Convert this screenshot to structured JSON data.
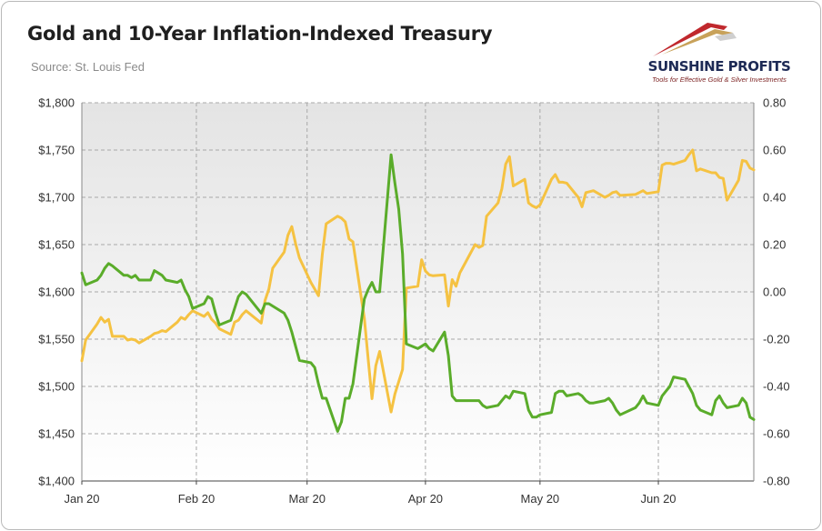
{
  "title": "Gold and 10-Year Inflation-Indexed Treasury",
  "source": "Source: St. Louis Fed",
  "logo": {
    "name": "SUNSHINE PROFITS",
    "tagline": "Tools for Effective Gold & Silver Investments"
  },
  "colors": {
    "gold": "#f5c242",
    "tips": "#5aac2a",
    "plot_bg_top": "#e4e4e4",
    "plot_bg_bottom": "#ffffff",
    "grid": "#a8a8a8",
    "logo_red": "#c0282d",
    "logo_gold": "#c8a25a"
  },
  "chart_data": {
    "type": "line",
    "x_axis": {
      "start": "2020-01-02",
      "end": "2020-06-26",
      "tick_dates": [
        "2020-01-02",
        "2020-02-01",
        "2020-03-01",
        "2020-04-01",
        "2020-05-01",
        "2020-06-01"
      ],
      "tick_labels": [
        "Jan 20",
        "Feb 20",
        "Mar 20",
        "Apr 20",
        "May 20",
        "Jun 20"
      ]
    },
    "y_left": {
      "min": 1400,
      "max": 1800,
      "ticks": [
        1400,
        1450,
        1500,
        1550,
        1600,
        1650,
        1700,
        1750,
        1800
      ],
      "tick_labels": [
        "$1,400",
        "$1,450",
        "$1,500",
        "$1,550",
        "$1,600",
        "$1,650",
        "$1,700",
        "$1,750",
        "$1,800"
      ]
    },
    "y_right": {
      "min": -0.8,
      "max": 0.8,
      "ticks": [
        -0.8,
        -0.6,
        -0.4,
        -0.2,
        0,
        0.2,
        0.4,
        0.6,
        0.8
      ],
      "tick_labels": [
        "-0.80",
        "-0.60",
        "-0.40",
        "-0.20",
        "0.00",
        "0.20",
        "0.40",
        "0.60",
        "0.80"
      ]
    },
    "grid": true,
    "legend": "none",
    "series": [
      {
        "axis": "left",
        "color": "#f5c242",
        "points": [
          [
            "2020-01-02",
            1527
          ],
          [
            "2020-01-03",
            1549
          ],
          [
            "2020-01-06",
            1566
          ],
          [
            "2020-01-07",
            1573
          ],
          [
            "2020-01-08",
            1568
          ],
          [
            "2020-01-09",
            1571
          ],
          [
            "2020-01-10",
            1553
          ],
          [
            "2020-01-13",
            1553
          ],
          [
            "2020-01-14",
            1549
          ],
          [
            "2020-01-15",
            1550
          ],
          [
            "2020-01-16",
            1549
          ],
          [
            "2020-01-17",
            1546
          ],
          [
            "2020-01-20",
            1553
          ],
          [
            "2020-01-21",
            1556
          ],
          [
            "2020-01-22",
            1557
          ],
          [
            "2020-01-23",
            1559
          ],
          [
            "2020-01-24",
            1558
          ],
          [
            "2020-01-27",
            1568
          ],
          [
            "2020-01-28",
            1573
          ],
          [
            "2020-01-29",
            1571
          ],
          [
            "2020-01-30",
            1576
          ],
          [
            "2020-01-31",
            1580
          ],
          [
            "2020-02-03",
            1574
          ],
          [
            "2020-02-04",
            1578
          ],
          [
            "2020-02-05",
            1571
          ],
          [
            "2020-02-06",
            1567
          ],
          [
            "2020-02-07",
            1561
          ],
          [
            "2020-02-10",
            1555
          ],
          [
            "2020-02-11",
            1568
          ],
          [
            "2020-02-12",
            1570
          ],
          [
            "2020-02-13",
            1576
          ],
          [
            "2020-02-14",
            1580
          ],
          [
            "2020-02-18",
            1567
          ],
          [
            "2020-02-19",
            1591
          ],
          [
            "2020-02-20",
            1603
          ],
          [
            "2020-02-21",
            1625
          ],
          [
            "2020-02-24",
            1642
          ],
          [
            "2020-02-25",
            1660
          ],
          [
            "2020-02-26",
            1669
          ],
          [
            "2020-02-27",
            1651
          ],
          [
            "2020-02-28",
            1636
          ],
          [
            "2020-03-02",
            1610
          ],
          [
            "2020-03-03",
            1603
          ],
          [
            "2020-03-04",
            1596
          ],
          [
            "2020-03-05",
            1640
          ],
          [
            "2020-03-06",
            1672
          ],
          [
            "2020-03-09",
            1680
          ],
          [
            "2020-03-10",
            1678
          ],
          [
            "2020-03-11",
            1674
          ],
          [
            "2020-03-12",
            1656
          ],
          [
            "2020-03-13",
            1653
          ],
          [
            "2020-03-16",
            1572
          ],
          [
            "2020-03-17",
            1529
          ],
          [
            "2020-03-18",
            1487
          ],
          [
            "2020-03-19",
            1522
          ],
          [
            "2020-03-20",
            1537
          ],
          [
            "2020-03-23",
            1473
          ],
          [
            "2020-03-24",
            1492
          ],
          [
            "2020-03-25",
            1505
          ],
          [
            "2020-03-26",
            1518
          ],
          [
            "2020-03-27",
            1604
          ],
          [
            "2020-03-30",
            1606
          ],
          [
            "2020-03-31",
            1634
          ],
          [
            "2020-04-01",
            1622
          ],
          [
            "2020-04-02",
            1618
          ],
          [
            "2020-04-03",
            1617
          ],
          [
            "2020-04-06",
            1618
          ],
          [
            "2020-04-07",
            1585
          ],
          [
            "2020-04-08",
            1613
          ],
          [
            "2020-04-09",
            1606
          ],
          [
            "2020-04-10",
            1620
          ],
          [
            "2020-04-14",
            1650
          ],
          [
            "2020-04-15",
            1647
          ],
          [
            "2020-04-16",
            1649
          ],
          [
            "2020-04-17",
            1680
          ],
          [
            "2020-04-20",
            1694
          ],
          [
            "2020-04-21",
            1709
          ],
          [
            "2020-04-22",
            1735
          ],
          [
            "2020-04-23",
            1743
          ],
          [
            "2020-04-24",
            1712
          ],
          [
            "2020-04-27",
            1719
          ],
          [
            "2020-04-28",
            1694
          ],
          [
            "2020-04-29",
            1691
          ],
          [
            "2020-04-30",
            1689
          ],
          [
            "2020-05-01",
            1692
          ],
          [
            "2020-05-04",
            1719
          ],
          [
            "2020-05-05",
            1724
          ],
          [
            "2020-05-06",
            1716
          ],
          [
            "2020-05-07",
            1716
          ],
          [
            "2020-05-08",
            1715
          ],
          [
            "2020-05-11",
            1700
          ],
          [
            "2020-05-12",
            1690
          ],
          [
            "2020-05-13",
            1705
          ],
          [
            "2020-05-14",
            1706
          ],
          [
            "2020-05-15",
            1707
          ],
          [
            "2020-05-18",
            1700
          ],
          [
            "2020-05-19",
            1702
          ],
          [
            "2020-05-20",
            1705
          ],
          [
            "2020-05-21",
            1706
          ],
          [
            "2020-05-22",
            1702
          ],
          [
            "2020-05-26",
            1703
          ],
          [
            "2020-05-27",
            1705
          ],
          [
            "2020-05-28",
            1707
          ],
          [
            "2020-05-29",
            1704
          ],
          [
            "2020-06-01",
            1706
          ],
          [
            "2020-06-02",
            1734
          ],
          [
            "2020-06-03",
            1736
          ],
          [
            "2020-06-04",
            1736
          ],
          [
            "2020-06-05",
            1735
          ],
          [
            "2020-06-08",
            1739
          ],
          [
            "2020-06-09",
            1745
          ],
          [
            "2020-06-10",
            1750
          ],
          [
            "2020-06-11",
            1728
          ],
          [
            "2020-06-12",
            1730
          ],
          [
            "2020-06-15",
            1726
          ],
          [
            "2020-06-16",
            1726
          ],
          [
            "2020-06-17",
            1721
          ],
          [
            "2020-06-18",
            1720
          ],
          [
            "2020-06-19",
            1697
          ],
          [
            "2020-06-22",
            1718
          ],
          [
            "2020-06-23",
            1739
          ],
          [
            "2020-06-24",
            1738
          ],
          [
            "2020-06-25",
            1731
          ],
          [
            "2020-06-26",
            1729
          ]
        ]
      },
      {
        "axis": "right",
        "color": "#5aac2a",
        "points": [
          [
            "2020-01-02",
            0.08
          ],
          [
            "2020-01-03",
            0.03
          ],
          [
            "2020-01-06",
            0.05
          ],
          [
            "2020-01-07",
            0.07
          ],
          [
            "2020-01-08",
            0.1
          ],
          [
            "2020-01-09",
            0.12
          ],
          [
            "2020-01-10",
            0.11
          ],
          [
            "2020-01-13",
            0.07
          ],
          [
            "2020-01-14",
            0.07
          ],
          [
            "2020-01-15",
            0.06
          ],
          [
            "2020-01-16",
            0.07
          ],
          [
            "2020-01-17",
            0.05
          ],
          [
            "2020-01-20",
            0.05
          ],
          [
            "2020-01-21",
            0.09
          ],
          [
            "2020-01-22",
            0.08
          ],
          [
            "2020-01-23",
            0.07
          ],
          [
            "2020-01-24",
            0.05
          ],
          [
            "2020-01-27",
            0.04
          ],
          [
            "2020-01-28",
            0.05
          ],
          [
            "2020-01-29",
            0.01
          ],
          [
            "2020-01-30",
            -0.02
          ],
          [
            "2020-01-31",
            -0.07
          ],
          [
            "2020-02-03",
            -0.05
          ],
          [
            "2020-02-04",
            -0.02
          ],
          [
            "2020-02-05",
            -0.03
          ],
          [
            "2020-02-06",
            -0.09
          ],
          [
            "2020-02-07",
            -0.14
          ],
          [
            "2020-02-10",
            -0.12
          ],
          [
            "2020-02-11",
            -0.07
          ],
          [
            "2020-02-12",
            -0.02
          ],
          [
            "2020-02-13",
            0.0
          ],
          [
            "2020-02-14",
            -0.01
          ],
          [
            "2020-02-18",
            -0.09
          ],
          [
            "2020-02-19",
            -0.05
          ],
          [
            "2020-02-20",
            -0.05
          ],
          [
            "2020-02-21",
            -0.06
          ],
          [
            "2020-02-24",
            -0.09
          ],
          [
            "2020-02-25",
            -0.12
          ],
          [
            "2020-02-26",
            -0.17
          ],
          [
            "2020-02-27",
            -0.23
          ],
          [
            "2020-02-28",
            -0.29
          ],
          [
            "2020-03-02",
            -0.3
          ],
          [
            "2020-03-03",
            -0.32
          ],
          [
            "2020-03-04",
            -0.39
          ],
          [
            "2020-03-05",
            -0.45
          ],
          [
            "2020-03-06",
            -0.45
          ],
          [
            "2020-03-09",
            -0.59
          ],
          [
            "2020-03-10",
            -0.55
          ],
          [
            "2020-03-11",
            -0.45
          ],
          [
            "2020-03-12",
            -0.45
          ],
          [
            "2020-03-13",
            -0.39
          ],
          [
            "2020-03-16",
            -0.03
          ],
          [
            "2020-03-17",
            0.01
          ],
          [
            "2020-03-18",
            0.04
          ],
          [
            "2020-03-19",
            0.0
          ],
          [
            "2020-03-20",
            0.0
          ],
          [
            "2020-03-23",
            0.58
          ],
          [
            "2020-03-24",
            0.46
          ],
          [
            "2020-03-25",
            0.35
          ],
          [
            "2020-03-26",
            0.16
          ],
          [
            "2020-03-27",
            -0.22
          ],
          [
            "2020-03-30",
            -0.24
          ],
          [
            "2020-03-31",
            -0.23
          ],
          [
            "2020-04-01",
            -0.22
          ],
          [
            "2020-04-02",
            -0.24
          ],
          [
            "2020-04-03",
            -0.25
          ],
          [
            "2020-04-06",
            -0.17
          ],
          [
            "2020-04-07",
            -0.27
          ],
          [
            "2020-04-08",
            -0.44
          ],
          [
            "2020-04-09",
            -0.46
          ],
          [
            "2020-04-10",
            -0.46
          ],
          [
            "2020-04-14",
            -0.46
          ],
          [
            "2020-04-15",
            -0.46
          ],
          [
            "2020-04-16",
            -0.48
          ],
          [
            "2020-04-17",
            -0.49
          ],
          [
            "2020-04-20",
            -0.48
          ],
          [
            "2020-04-21",
            -0.46
          ],
          [
            "2020-04-22",
            -0.44
          ],
          [
            "2020-04-23",
            -0.45
          ],
          [
            "2020-04-24",
            -0.42
          ],
          [
            "2020-04-27",
            -0.43
          ],
          [
            "2020-04-28",
            -0.5
          ],
          [
            "2020-04-29",
            -0.53
          ],
          [
            "2020-04-30",
            -0.53
          ],
          [
            "2020-05-01",
            -0.52
          ],
          [
            "2020-05-04",
            -0.51
          ],
          [
            "2020-05-05",
            -0.43
          ],
          [
            "2020-05-06",
            -0.42
          ],
          [
            "2020-05-07",
            -0.42
          ],
          [
            "2020-05-08",
            -0.44
          ],
          [
            "2020-05-11",
            -0.43
          ],
          [
            "2020-05-12",
            -0.44
          ],
          [
            "2020-05-13",
            -0.46
          ],
          [
            "2020-05-14",
            -0.47
          ],
          [
            "2020-05-15",
            -0.47
          ],
          [
            "2020-05-18",
            -0.46
          ],
          [
            "2020-05-19",
            -0.45
          ],
          [
            "2020-05-20",
            -0.47
          ],
          [
            "2020-05-21",
            -0.5
          ],
          [
            "2020-05-22",
            -0.52
          ],
          [
            "2020-05-26",
            -0.49
          ],
          [
            "2020-05-27",
            -0.47
          ],
          [
            "2020-05-28",
            -0.44
          ],
          [
            "2020-05-29",
            -0.47
          ],
          [
            "2020-06-01",
            -0.48
          ],
          [
            "2020-06-02",
            -0.44
          ],
          [
            "2020-06-03",
            -0.42
          ],
          [
            "2020-06-04",
            -0.4
          ],
          [
            "2020-06-05",
            -0.36
          ],
          [
            "2020-06-08",
            -0.37
          ],
          [
            "2020-06-09",
            -0.4
          ],
          [
            "2020-06-10",
            -0.43
          ],
          [
            "2020-06-11",
            -0.48
          ],
          [
            "2020-06-12",
            -0.5
          ],
          [
            "2020-06-15",
            -0.52
          ],
          [
            "2020-06-16",
            -0.46
          ],
          [
            "2020-06-17",
            -0.44
          ],
          [
            "2020-06-18",
            -0.47
          ],
          [
            "2020-06-19",
            -0.49
          ],
          [
            "2020-06-22",
            -0.48
          ],
          [
            "2020-06-23",
            -0.45
          ],
          [
            "2020-06-24",
            -0.47
          ],
          [
            "2020-06-25",
            -0.53
          ],
          [
            "2020-06-26",
            -0.54
          ]
        ]
      }
    ]
  }
}
